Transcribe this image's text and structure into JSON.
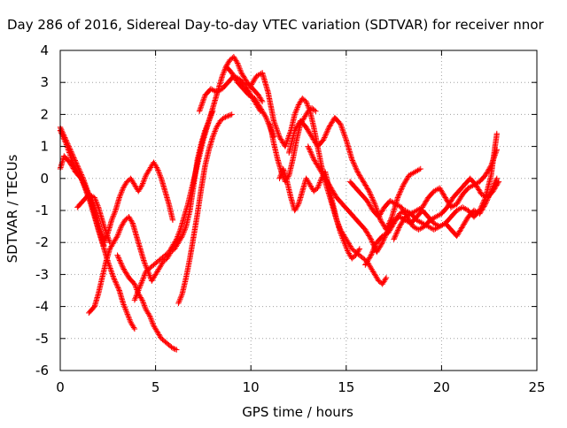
{
  "chart_data": {
    "type": "scatter",
    "title": "Day 286 of 2016, Sidereal Day-to-day VTEC variation (SDTVAR) for receiver nnor",
    "xlabel": "GPS time / hours",
    "ylabel": "SDTVAR / TECUs",
    "xlim": [
      0,
      25
    ],
    "ylim": [
      -6,
      4
    ],
    "xticks": [
      0,
      5,
      10,
      15,
      20,
      25
    ],
    "yticks": [
      -6,
      -5,
      -4,
      -3,
      -2,
      -1,
      0,
      1,
      2,
      3,
      4
    ],
    "grid": true,
    "legend": "none",
    "marker": "+",
    "color": "#ff0000",
    "series": [
      {
        "x": [
          0.0,
          0.2,
          0.5,
          0.8,
          1.1,
          1.3,
          1.6,
          1.9,
          2.2,
          2.5,
          2.8,
          3.1,
          3.3,
          3.5,
          3.7,
          3.9
        ],
        "y": [
          0.3,
          0.7,
          0.5,
          0.2,
          0.0,
          -0.3,
          -0.8,
          -1.4,
          -2.0,
          -2.6,
          -3.1,
          -3.5,
          -3.9,
          -4.2,
          -4.5,
          -4.7
        ]
      },
      {
        "x": [
          0.0,
          0.3,
          0.6,
          0.9,
          1.2,
          1.4,
          1.7,
          1.9,
          2.1,
          2.3
        ],
        "y": [
          1.5,
          1.1,
          0.6,
          0.2,
          -0.1,
          -0.4,
          -0.8,
          -1.2,
          -1.6,
          -1.9
        ]
      },
      {
        "x": [
          0.0,
          0.3,
          0.6,
          0.9,
          1.2,
          1.5,
          1.8,
          2.0,
          2.3
        ],
        "y": [
          1.6,
          1.2,
          0.8,
          0.4,
          0.0,
          -0.5,
          -1.1,
          -1.6,
          -2.1
        ]
      },
      {
        "x": [
          0.9,
          1.2,
          1.5,
          1.8,
          2.0,
          2.3,
          2.6
        ],
        "y": [
          -0.9,
          -0.7,
          -0.5,
          -0.6,
          -0.9,
          -1.5,
          -2.0
        ]
      },
      {
        "x": [
          1.5,
          1.8,
          2.0,
          2.2,
          2.4,
          2.6,
          2.8,
          3.0,
          3.2,
          3.4,
          3.6,
          3.8,
          4.0,
          4.2,
          4.4,
          4.6,
          4.8,
          5.0,
          5.2,
          5.4,
          5.6,
          5.8,
          6.0,
          6.2,
          6.4,
          6.6,
          6.8,
          7.0,
          7.2,
          7.4,
          7.6,
          7.8,
          8.0
        ],
        "y": [
          -4.2,
          -4.0,
          -3.6,
          -3.1,
          -2.6,
          -2.2,
          -2.0,
          -1.8,
          -1.5,
          -1.3,
          -1.2,
          -1.4,
          -1.8,
          -2.2,
          -2.6,
          -2.9,
          -3.2,
          -3.0,
          -2.8,
          -2.6,
          -2.5,
          -2.3,
          -2.2,
          -2.0,
          -1.8,
          -1.5,
          -1.0,
          -0.2,
          0.6,
          1.1,
          1.5,
          1.8,
          2.1
        ]
      },
      {
        "x": [
          2.3,
          2.5,
          2.7,
          2.9,
          3.1,
          3.3,
          3.5,
          3.7,
          3.9,
          4.1,
          4.3,
          4.5,
          4.7,
          4.9,
          5.1,
          5.3,
          5.5,
          5.7,
          5.9
        ],
        "y": [
          -2.0,
          -1.7,
          -1.3,
          -1.0,
          -0.6,
          -0.3,
          -0.1,
          0.0,
          -0.2,
          -0.4,
          -0.2,
          0.1,
          0.3,
          0.5,
          0.3,
          0.0,
          -0.4,
          -0.8,
          -1.3
        ]
      },
      {
        "x": [
          3.0,
          3.3,
          3.6,
          3.9,
          4.1,
          4.3,
          4.5,
          4.7,
          4.9,
          5.1,
          5.3,
          5.5,
          5.7,
          5.9,
          6.1
        ],
        "y": [
          -2.4,
          -2.8,
          -3.1,
          -3.3,
          -3.6,
          -3.8,
          -4.1,
          -4.3,
          -4.6,
          -4.8,
          -5.0,
          -5.1,
          -5.2,
          -5.3,
          -5.35
        ]
      },
      {
        "x": [
          3.9,
          4.1,
          4.3,
          4.5,
          4.7,
          4.9,
          5.1,
          5.3,
          5.5,
          5.7,
          5.9,
          6.1,
          6.3,
          6.5,
          6.7,
          6.9,
          7.1,
          7.3,
          7.5,
          7.7,
          7.9,
          8.1,
          8.3,
          8.5,
          8.7,
          8.9,
          9.1,
          9.3,
          9.5,
          9.8,
          10.1,
          10.4,
          10.6
        ],
        "y": [
          -3.8,
          -3.5,
          -3.2,
          -2.9,
          -2.8,
          -2.7,
          -2.6,
          -2.5,
          -2.4,
          -2.3,
          -2.1,
          -1.9,
          -1.6,
          -1.2,
          -0.8,
          -0.3,
          0.2,
          0.7,
          1.2,
          1.6,
          2.0,
          2.4,
          2.8,
          3.2,
          3.5,
          3.7,
          3.8,
          3.6,
          3.3,
          3.0,
          2.8,
          2.6,
          2.4
        ]
      },
      {
        "x": [
          6.2,
          6.4,
          6.6,
          6.8,
          7.0,
          7.2,
          7.4,
          7.6,
          7.8,
          8.0,
          8.2,
          8.4,
          8.6,
          8.8,
          9.0
        ],
        "y": [
          -3.9,
          -3.6,
          -3.1,
          -2.5,
          -1.8,
          -1.1,
          -0.3,
          0.4,
          0.9,
          1.3,
          1.6,
          1.8,
          1.9,
          1.95,
          2.0
        ]
      },
      {
        "x": [
          7.3,
          7.6,
          7.9,
          8.2,
          8.5,
          8.8,
          9.1,
          9.4,
          9.7,
          10.0,
          10.3,
          10.5
        ],
        "y": [
          2.1,
          2.6,
          2.8,
          2.7,
          2.8,
          3.0,
          3.2,
          3.1,
          2.9,
          2.6,
          2.3,
          2.1
        ]
      },
      {
        "x": [
          8.7,
          9.0,
          9.3,
          9.6,
          9.9,
          10.2,
          10.5,
          10.8,
          11.0,
          11.2
        ],
        "y": [
          3.5,
          3.3,
          3.0,
          2.8,
          2.6,
          2.5,
          2.2,
          1.9,
          1.6,
          1.3
        ]
      },
      {
        "x": [
          10.0,
          10.3,
          10.6,
          10.9,
          11.2,
          11.5,
          11.8,
          12.1,
          12.3,
          12.5,
          12.7,
          12.9,
          13.1,
          13.3,
          13.5,
          13.7,
          13.9,
          14.1,
          14.3,
          14.5,
          14.7,
          14.9,
          15.1,
          15.3,
          15.5,
          15.7,
          15.9,
          16.1,
          16.3,
          16.5,
          16.7,
          16.9,
          17.1
        ],
        "y": [
          2.9,
          3.2,
          3.3,
          2.7,
          1.8,
          1.3,
          1.0,
          1.5,
          2.0,
          2.3,
          2.5,
          2.4,
          2.1,
          1.6,
          1.0,
          0.4,
          -0.1,
          -0.5,
          -0.9,
          -1.3,
          -1.6,
          -1.8,
          -2.0,
          -2.2,
          -2.3,
          -2.4,
          -2.5,
          -2.6,
          -2.8,
          -3.0,
          -3.2,
          -3.3,
          -3.1
        ]
      },
      {
        "x": [
          11.0,
          11.2,
          11.4,
          11.6,
          11.8,
          12.0,
          12.2,
          12.4,
          12.6,
          12.8,
          13.0,
          13.2,
          13.4
        ],
        "y": [
          1.7,
          1.1,
          0.6,
          0.2,
          -0.1,
          0.1,
          0.6,
          1.2,
          1.7,
          1.9,
          2.1,
          2.2,
          2.1
        ]
      },
      {
        "x": [
          11.5,
          11.7,
          11.9,
          12.1,
          12.3,
          12.5,
          12.7,
          12.9,
          13.1,
          13.3,
          13.5,
          13.7,
          13.9,
          14.1,
          14.3,
          14.5,
          14.7,
          14.9,
          15.1,
          15.3,
          15.5,
          15.7
        ],
        "y": [
          0.0,
          0.3,
          -0.1,
          -0.6,
          -1.0,
          -0.8,
          -0.4,
          0.0,
          -0.2,
          -0.4,
          -0.3,
          0.0,
          0.2,
          -0.3,
          -0.8,
          -1.3,
          -1.7,
          -2.0,
          -2.3,
          -2.5,
          -2.4,
          -2.2
        ]
      },
      {
        "x": [
          12.0,
          12.3,
          12.6,
          12.9,
          13.2,
          13.5,
          13.8,
          14.1,
          14.4,
          14.7,
          15.0,
          15.3,
          15.6,
          15.9,
          16.2,
          16.5,
          16.8,
          17.1,
          17.4,
          17.7,
          18.0,
          18.3,
          18.6,
          18.9
        ],
        "y": [
          0.8,
          1.5,
          1.8,
          1.6,
          1.3,
          1.0,
          1.2,
          1.6,
          1.9,
          1.7,
          1.2,
          0.6,
          0.2,
          -0.1,
          -0.4,
          -0.8,
          -1.3,
          -1.6,
          -1.2,
          -0.6,
          -0.2,
          0.1,
          0.2,
          0.3
        ]
      },
      {
        "x": [
          13.0,
          13.3,
          13.6,
          13.9,
          14.2,
          14.5,
          14.8,
          15.1,
          15.4,
          15.7,
          16.0,
          16.3,
          16.6,
          16.9,
          17.2,
          17.5,
          17.8,
          18.1,
          18.4,
          18.7,
          19.0,
          19.3,
          19.6,
          19.9,
          20.2,
          20.5,
          20.8,
          21.1,
          21.4,
          21.7,
          22.0,
          22.3,
          22.6,
          22.9
        ],
        "y": [
          1.0,
          0.6,
          0.3,
          0.0,
          -0.3,
          -0.6,
          -0.8,
          -1.0,
          -1.2,
          -1.4,
          -1.6,
          -1.9,
          -2.3,
          -2.0,
          -1.6,
          -1.3,
          -1.2,
          -1.3,
          -1.4,
          -1.2,
          -1.0,
          -1.2,
          -1.4,
          -1.5,
          -1.4,
          -1.2,
          -1.0,
          -0.9,
          -1.0,
          -1.2,
          -1.0,
          -0.6,
          0.1,
          1.4
        ]
      },
      {
        "x": [
          15.2,
          15.5,
          15.8,
          16.1,
          16.4,
          16.7,
          17.0,
          17.3,
          17.6,
          17.9,
          18.2,
          18.5,
          18.8,
          19.1,
          19.4,
          19.7,
          20.0,
          20.3,
          20.6,
          20.9,
          21.2,
          21.5,
          21.8,
          22.1,
          22.4,
          22.7,
          23.0
        ],
        "y": [
          -0.1,
          -0.3,
          -0.5,
          -0.7,
          -1.0,
          -1.2,
          -0.9,
          -0.7,
          -0.8,
          -0.9,
          -1.2,
          -1.5,
          -1.6,
          -1.5,
          -1.3,
          -1.2,
          -1.1,
          -0.9,
          -0.6,
          -0.4,
          -0.2,
          0.0,
          -0.2,
          -0.5,
          -0.6,
          -0.4,
          -0.1
        ]
      },
      {
        "x": [
          16.0,
          16.3,
          16.6,
          16.9,
          17.2,
          17.5,
          17.8,
          18.1,
          18.4,
          18.7,
          19.0,
          19.3,
          19.6,
          19.9,
          20.2,
          20.5,
          20.8,
          21.1,
          21.4,
          21.7,
          22.0,
          22.3,
          22.6,
          22.9
        ],
        "y": [
          -2.7,
          -2.4,
          -2.0,
          -1.8,
          -1.7,
          -1.4,
          -1.1,
          -1.0,
          -1.1,
          -1.3,
          -1.4,
          -1.5,
          -1.6,
          -1.5,
          -1.4,
          -1.6,
          -1.8,
          -1.5,
          -1.2,
          -1.0,
          -1.1,
          -0.8,
          -0.4,
          0.0
        ]
      },
      {
        "x": [
          17.5,
          17.8,
          18.1,
          18.4,
          18.7,
          19.0,
          19.3,
          19.6,
          19.9,
          20.2,
          20.5,
          20.8,
          21.1,
          21.4,
          21.7,
          22.0,
          22.3,
          22.6,
          22.9
        ],
        "y": [
          -1.9,
          -1.5,
          -1.2,
          -1.1,
          -1.0,
          -0.9,
          -0.6,
          -0.4,
          -0.3,
          -0.6,
          -0.9,
          -0.8,
          -0.5,
          -0.3,
          -0.2,
          -0.1,
          0.1,
          0.4,
          0.9
        ]
      }
    ]
  }
}
